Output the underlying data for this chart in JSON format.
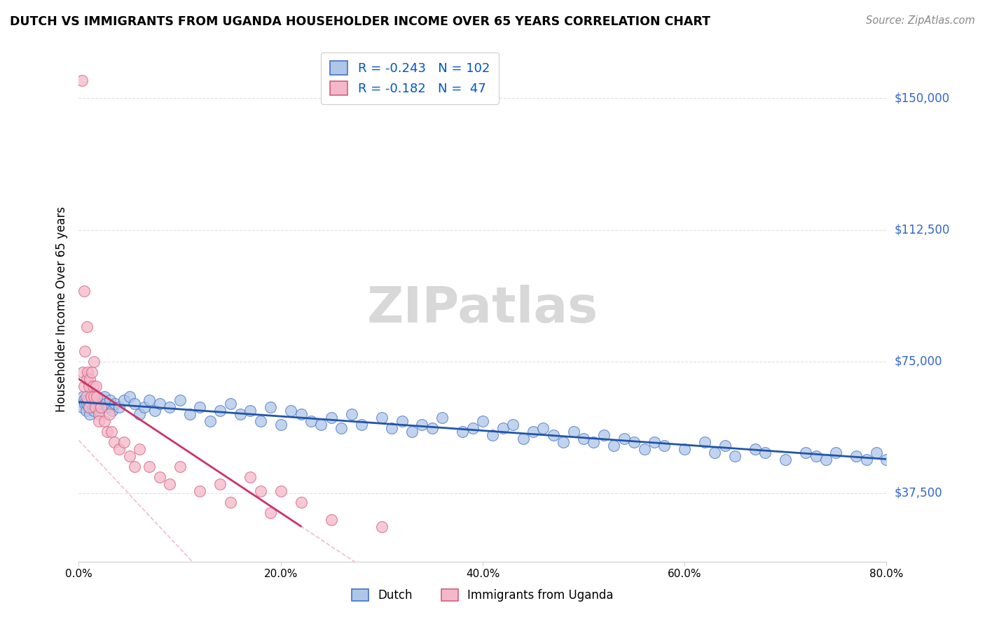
{
  "title": "DUTCH VS IMMIGRANTS FROM UGANDA HOUSEHOLDER INCOME OVER 65 YEARS CORRELATION CHART",
  "source": "Source: ZipAtlas.com",
  "ylabel": "Householder Income Over 65 years",
  "xlim": [
    0.0,
    80.0
  ],
  "ylim": [
    18000,
    162000
  ],
  "ytick_positions": [
    37500,
    75000,
    112500,
    150000
  ],
  "ytick_labels": [
    "$37,500",
    "$75,000",
    "$112,500",
    "$150,000"
  ],
  "xtick_positions": [
    0,
    20,
    40,
    60,
    80
  ],
  "xtick_labels": [
    "0.0%",
    "20.0%",
    "40.0%",
    "60.0%",
    "80.0%"
  ],
  "dutch_R": -0.243,
  "dutch_N": 102,
  "uganda_R": -0.182,
  "uganda_N": 47,
  "dutch_color": "#aec6e8",
  "dutch_edge_color": "#4472c4",
  "uganda_color": "#f5b8c8",
  "uganda_edge_color": "#d06080",
  "dutch_line_color": "#2255aa",
  "uganda_line_color": "#cc3366",
  "uganda_dash_color": "#f0a0b8",
  "legend_text_color": "#0055cc",
  "watermark_color": "#d8d8d8",
  "right_label_color": "#3366cc",
  "dutch_x": [
    0.3,
    0.4,
    0.5,
    0.6,
    0.7,
    0.8,
    0.9,
    1.0,
    1.1,
    1.2,
    1.3,
    1.4,
    1.5,
    1.6,
    1.7,
    1.8,
    1.9,
    2.0,
    2.1,
    2.2,
    2.3,
    2.5,
    2.7,
    2.9,
    3.1,
    3.3,
    3.6,
    4.0,
    4.5,
    5.0,
    5.5,
    6.0,
    6.5,
    7.0,
    7.5,
    8.0,
    9.0,
    10.0,
    11.0,
    12.0,
    13.0,
    14.0,
    15.0,
    16.0,
    17.0,
    18.0,
    19.0,
    20.0,
    21.0,
    22.0,
    23.0,
    24.0,
    25.0,
    26.0,
    27.0,
    28.0,
    30.0,
    31.0,
    32.0,
    33.0,
    34.0,
    35.0,
    36.0,
    38.0,
    39.0,
    40.0,
    41.0,
    42.0,
    43.0,
    44.0,
    45.0,
    46.0,
    47.0,
    48.0,
    49.0,
    50.0,
    51.0,
    52.0,
    53.0,
    54.0,
    55.0,
    56.0,
    57.0,
    58.0,
    60.0,
    62.0,
    63.0,
    64.0,
    65.0,
    67.0,
    68.0,
    70.0,
    72.0,
    73.0,
    74.0,
    75.0,
    77.0,
    78.0,
    79.0,
    80.0,
    81.0,
    82.0
  ],
  "dutch_y": [
    62000,
    65000,
    64000,
    63000,
    61000,
    63000,
    64000,
    62000,
    60000,
    63000,
    65000,
    62000,
    61000,
    63000,
    64000,
    65000,
    62000,
    61000,
    63000,
    62000,
    64000,
    65000,
    63000,
    62000,
    64000,
    61000,
    63000,
    62000,
    64000,
    65000,
    63000,
    60000,
    62000,
    64000,
    61000,
    63000,
    62000,
    64000,
    60000,
    62000,
    58000,
    61000,
    63000,
    60000,
    61000,
    58000,
    62000,
    57000,
    61000,
    60000,
    58000,
    57000,
    59000,
    56000,
    60000,
    57000,
    59000,
    56000,
    58000,
    55000,
    57000,
    56000,
    59000,
    55000,
    56000,
    58000,
    54000,
    56000,
    57000,
    53000,
    55000,
    56000,
    54000,
    52000,
    55000,
    53000,
    52000,
    54000,
    51000,
    53000,
    52000,
    50000,
    52000,
    51000,
    50000,
    52000,
    49000,
    51000,
    48000,
    50000,
    49000,
    47000,
    49000,
    48000,
    47000,
    49000,
    48000,
    47000,
    49000,
    47000,
    48000,
    49000
  ],
  "uganda_x": [
    0.3,
    0.4,
    0.5,
    0.5,
    0.6,
    0.7,
    0.8,
    0.8,
    0.9,
    1.0,
    1.0,
    1.1,
    1.2,
    1.3,
    1.4,
    1.5,
    1.5,
    1.6,
    1.7,
    1.8,
    2.0,
    2.0,
    2.2,
    2.5,
    2.8,
    3.0,
    3.2,
    3.5,
    4.0,
    4.5,
    5.0,
    5.5,
    6.0,
    7.0,
    8.0,
    9.0,
    10.0,
    12.0,
    14.0,
    15.0,
    17.0,
    18.0,
    19.0,
    20.0,
    22.0,
    25.0,
    30.0
  ],
  "uganda_y": [
    155000,
    72000,
    68000,
    95000,
    78000,
    65000,
    85000,
    70000,
    72000,
    68000,
    62000,
    70000,
    65000,
    72000,
    68000,
    65000,
    75000,
    62000,
    68000,
    65000,
    60000,
    58000,
    62000,
    58000,
    55000,
    60000,
    55000,
    52000,
    50000,
    52000,
    48000,
    45000,
    50000,
    45000,
    42000,
    40000,
    45000,
    38000,
    40000,
    35000,
    42000,
    38000,
    32000,
    38000,
    35000,
    30000,
    28000
  ]
}
